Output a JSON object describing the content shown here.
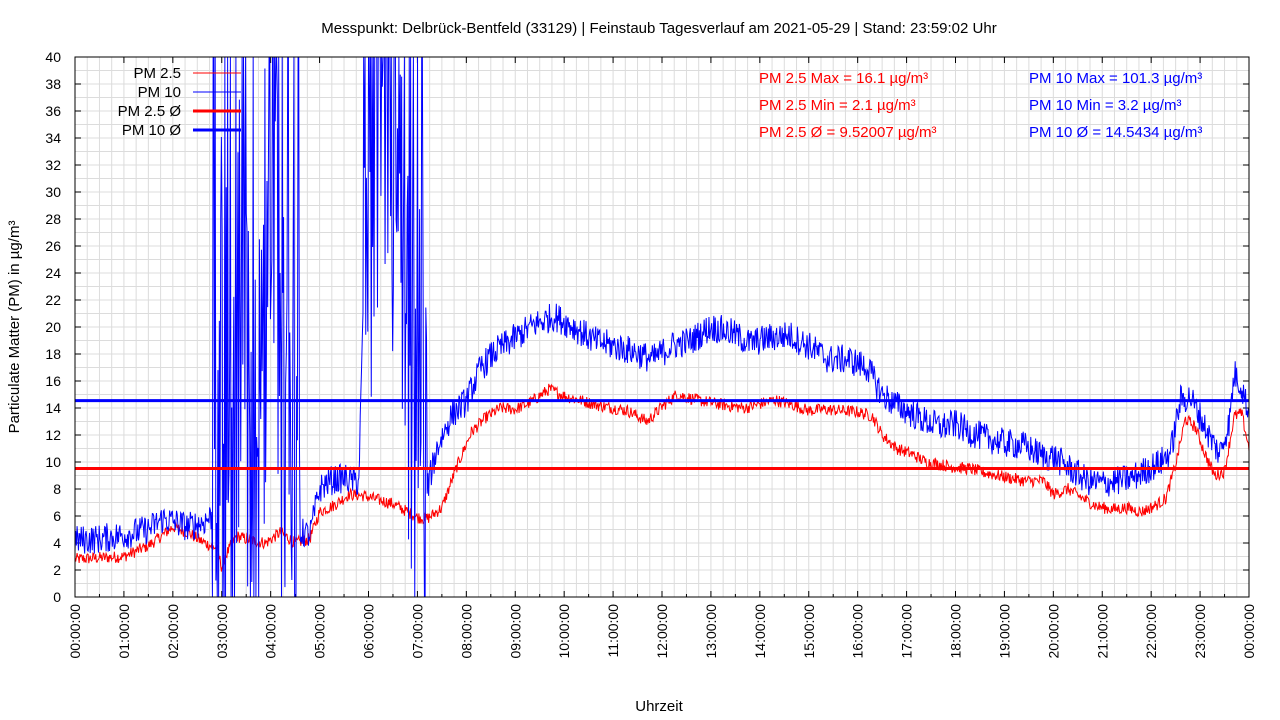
{
  "chart_data": {
    "type": "line",
    "title": "Messpunkt: Delbrück-Bentfeld (33129) | Feinstaub Tagesverlauf am 2021-05-29 | Stand: 23:59:02 Uhr",
    "xlabel": "Uhrzeit",
    "ylabel": "Particulate Matter (PM) in µg/m³",
    "ylim": [
      0,
      40
    ],
    "yticks": [
      0,
      2,
      4,
      6,
      8,
      10,
      12,
      14,
      16,
      18,
      20,
      22,
      24,
      26,
      28,
      30,
      32,
      34,
      36,
      38,
      40
    ],
    "xlim_hours": [
      0,
      24
    ],
    "xticks": [
      "00:00:00",
      "01:00:00",
      "02:00:00",
      "03:00:00",
      "04:00:00",
      "05:00:00",
      "06:00:00",
      "07:00:00",
      "08:00:00",
      "09:00:00",
      "10:00:00",
      "11:00:00",
      "12:00:00",
      "13:00:00",
      "14:00:00",
      "15:00:00",
      "16:00:00",
      "17:00:00",
      "18:00:00",
      "19:00:00",
      "20:00:00",
      "21:00:00",
      "22:00:00",
      "23:00:00",
      "00:00:00"
    ],
    "grid": true,
    "legend_placement": "top-left",
    "series": [
      {
        "name": "PM 2.5",
        "color": "#ff0000",
        "x_hours": [
          0,
          0.5,
          1,
          1.5,
          1.8,
          2,
          2.3,
          2.6,
          2.9,
          3.0,
          3.1,
          3.3,
          3.6,
          3.9,
          4.2,
          4.5,
          4.8,
          5.0,
          5.3,
          5.6,
          5.9,
          6.2,
          6.5,
          6.8,
          7.0,
          7.2,
          7.5,
          7.8,
          8.1,
          8.4,
          8.7,
          9.0,
          9.3,
          9.7,
          10.0,
          10.3,
          10.7,
          11.0,
          11.3,
          11.7,
          12.0,
          12.3,
          12.7,
          13.0,
          13.3,
          13.7,
          14.0,
          14.3,
          14.7,
          15.0,
          15.3,
          15.7,
          16.0,
          16.3,
          16.5,
          16.8,
          17.1,
          17.4,
          17.7,
          18.0,
          18.3,
          18.6,
          19.0,
          19.4,
          19.8,
          20.0,
          20.3,
          20.6,
          20.9,
          21.2,
          21.5,
          21.8,
          22.1,
          22.3,
          22.5,
          22.7,
          22.9,
          23.1,
          23.3,
          23.5,
          23.7,
          23.85,
          24
        ],
        "values": [
          2.8,
          2.9,
          3.0,
          3.8,
          4.6,
          5.2,
          4.8,
          4.1,
          3.6,
          2.2,
          3.2,
          4.5,
          4.2,
          4.0,
          4.8,
          4.0,
          4.3,
          6.3,
          6.8,
          7.6,
          7.5,
          7.2,
          6.9,
          6.3,
          5.9,
          5.8,
          6.6,
          9.6,
          12.2,
          13.3,
          14.0,
          13.9,
          14.4,
          15.4,
          14.9,
          14.6,
          14.2,
          14.0,
          13.8,
          13.0,
          14.1,
          15.0,
          14.6,
          14.4,
          14.2,
          14.0,
          14.3,
          14.6,
          14.2,
          13.8,
          13.9,
          13.8,
          13.7,
          13.4,
          12.0,
          11.0,
          10.6,
          10.0,
          9.8,
          9.6,
          9.5,
          9.2,
          8.9,
          8.6,
          8.6,
          7.6,
          8.0,
          7.3,
          6.7,
          6.5,
          6.6,
          6.3,
          6.8,
          7.3,
          9.8,
          13.2,
          12.6,
          10.6,
          9.0,
          9.3,
          13.4,
          13.6,
          11.0
        ],
        "noise": 0.45
      },
      {
        "name": "PM 10",
        "color": "#0000ff",
        "x_hours": [
          0,
          0.5,
          1,
          1.5,
          1.8,
          2,
          2.3,
          2.6,
          2.8,
          3.0,
          3.2,
          3.4,
          3.6,
          3.8,
          4.0,
          4.2,
          4.4,
          4.6,
          4.8,
          5.0,
          5.2,
          5.5,
          5.8,
          6.0,
          6.1,
          6.3,
          6.5,
          6.7,
          6.9,
          7.1,
          7.2,
          7.4,
          7.7,
          8.0,
          8.3,
          8.6,
          9.0,
          9.4,
          9.8,
          10.2,
          10.6,
          11.0,
          11.4,
          11.8,
          12.2,
          12.6,
          13.0,
          13.4,
          13.8,
          14.2,
          14.6,
          15.0,
          15.4,
          15.8,
          16.2,
          16.5,
          16.8,
          17.1,
          17.4,
          17.7,
          18.0,
          18.3,
          18.6,
          19.0,
          19.4,
          19.8,
          20.0,
          20.3,
          20.7,
          21.0,
          21.3,
          21.6,
          21.9,
          22.2,
          22.4,
          22.6,
          22.8,
          23.0,
          23.2,
          23.4,
          23.6,
          23.7,
          23.85,
          24
        ],
        "values": [
          4.2,
          4.3,
          4.6,
          5.0,
          5.8,
          5.6,
          5.2,
          5.5,
          6.0,
          14,
          8,
          26,
          7,
          6,
          40,
          9,
          20,
          4.8,
          4.6,
          8.0,
          8.6,
          8.8,
          8.5,
          36,
          25,
          40,
          35,
          20,
          15,
          10,
          8,
          11,
          13.5,
          14.5,
          17.0,
          18.2,
          19.2,
          20.2,
          20.8,
          20.0,
          19.0,
          18.6,
          18.2,
          17.6,
          18.6,
          19.0,
          20.0,
          19.6,
          18.8,
          19.2,
          19.4,
          18.6,
          17.6,
          17.6,
          17.0,
          15.0,
          14.2,
          13.6,
          13.0,
          12.6,
          12.8,
          12.2,
          11.8,
          11.4,
          11.2,
          10.4,
          10.4,
          9.6,
          8.6,
          8.4,
          8.6,
          8.8,
          9.4,
          10.0,
          10.8,
          14.6,
          14.8,
          13.4,
          11.8,
          10.6,
          13.0,
          16.6,
          15.6,
          13.6
        ],
        "noise": 1.1
      },
      {
        "name": "PM 2.5 Ø",
        "color": "#ff0000",
        "constant": 9.52007
      },
      {
        "name": "PM 10 Ø",
        "color": "#0000ff",
        "constant": 14.5434
      }
    ],
    "stats": {
      "pm25": [
        "PM 2.5 Max = 16.1 µg/m³",
        "PM 2.5 Min = 2.1 µg/m³",
        "PM 2.5 Ø = 9.52007 µg/m³"
      ],
      "pm10": [
        "PM 10 Max = 101.3 µg/m³",
        "PM 10 Min = 3.2 µg/m³",
        "PM 10 Ø = 14.5434 µg/m³"
      ]
    },
    "colors": {
      "pm25": "#ff0000",
      "pm10": "#0000ff",
      "grid": "#dcdcdc",
      "axis": "#000000"
    }
  }
}
